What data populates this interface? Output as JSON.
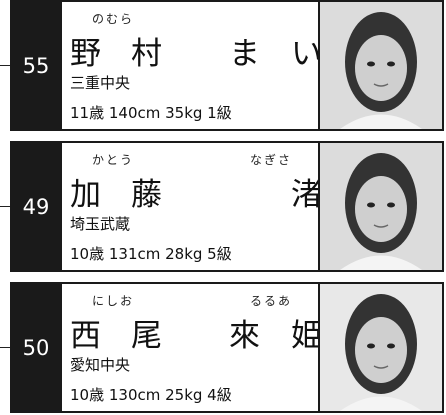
{
  "players": [
    {
      "number": "55",
      "surname_reading": "のむら",
      "surname": "野村",
      "given_name": "ま　い",
      "school": "三重中央",
      "stats": "11歳 140cm 35kg 1級"
    },
    {
      "number": "49",
      "surname_reading": "かとう",
      "given_reading": "なぎさ",
      "surname": "加藤",
      "given_name": "渚",
      "school": "埼玉武蔵",
      "stats": "10歳 131cm 28kg 5級"
    },
    {
      "number": "50",
      "surname_reading": "にしお",
      "given_reading": "るるあ",
      "surname": "西尾",
      "given_name": "來　姫",
      "school": "愛知中央",
      "stats": "10歳 130cm 25kg 4級"
    }
  ]
}
